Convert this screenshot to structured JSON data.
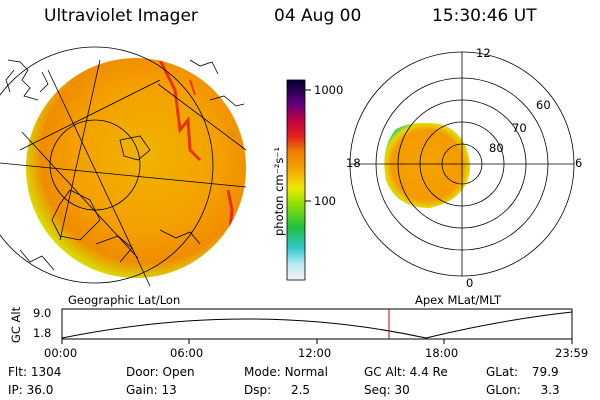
{
  "header": {
    "instrument": "Ultraviolet Imager",
    "date": "04 Aug 00",
    "time": "15:30:46 UT"
  },
  "colorbar": {
    "unit": "photon cm⁻²s⁻¹",
    "ticks": [
      "1000",
      "100"
    ],
    "scale": "log"
  },
  "geo_panel": {
    "caption": "Geographic Lat/Lon"
  },
  "polar_panel": {
    "caption": "Apex MLat/MLT",
    "mlt_labels": [
      "12",
      "18",
      "6",
      "0"
    ],
    "mlat_labels": [
      "60",
      "70",
      "80"
    ]
  },
  "timeline": {
    "axis_label": "GC Alt",
    "y_ticks": [
      "9.0",
      "1.8"
    ],
    "x_ticks": [
      "00:00",
      "06:00",
      "12:00",
      "18:00",
      "23:59"
    ],
    "current_marker": "15:30"
  },
  "status": {
    "row1": [
      {
        "label": "Flt:",
        "value": "1304"
      },
      {
        "label": "Door:",
        "value": "Open"
      },
      {
        "label": "Mode:",
        "value": "Normal"
      },
      {
        "label": "GC Alt:",
        "value": "4.4 Re"
      },
      {
        "label": "GLat:",
        "value": "79.9"
      }
    ],
    "row2": [
      {
        "label": "IP:",
        "value": "36.0"
      },
      {
        "label": "Gain:",
        "value": "13"
      },
      {
        "label": "Dsp:",
        "value": "2.5"
      },
      {
        "label": "Seq:",
        "value": "30"
      },
      {
        "label": "GLon:",
        "value": "3.3"
      }
    ]
  },
  "colors": {
    "background": "#ffffff",
    "time_marker": "#cc0000"
  }
}
